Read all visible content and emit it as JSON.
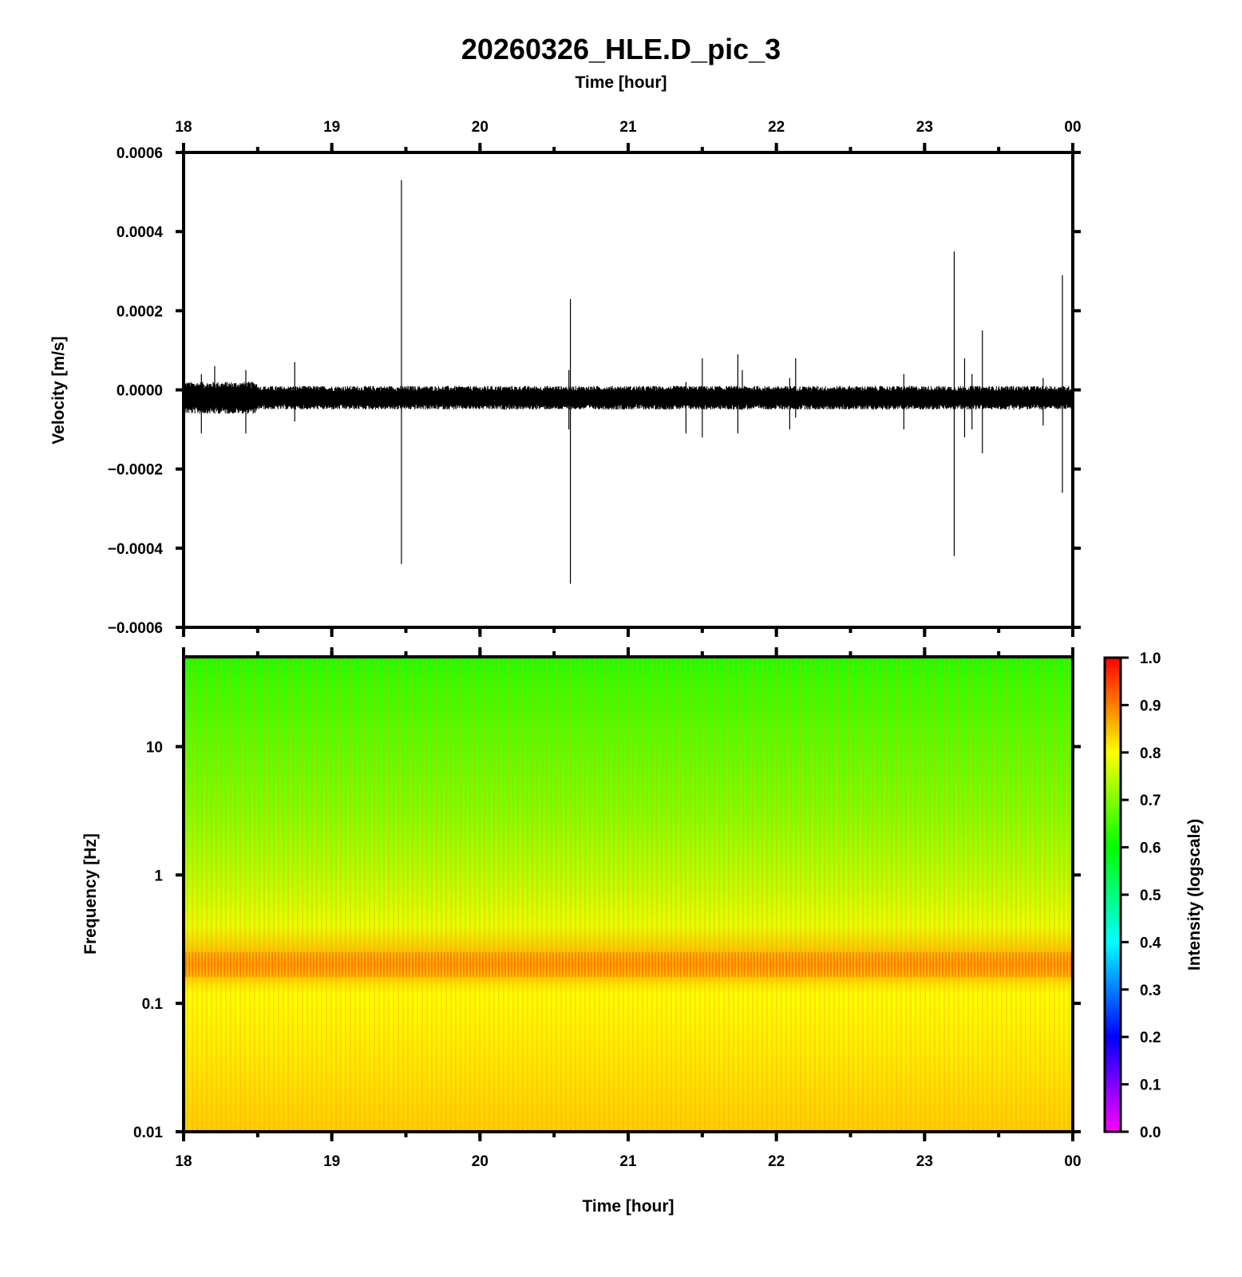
{
  "chart_data": [
    {
      "type": "line",
      "title": "20260326_HLE.D_pic_3",
      "xlabel_top": "Time [hour]",
      "ylabel": "Velocity [m/s]",
      "x_tick_labels": [
        "18",
        "19",
        "20",
        "21",
        "22",
        "23",
        "00"
      ],
      "xlim_hours": [
        18,
        24
      ],
      "ylim": [
        -0.0006,
        0.0006
      ],
      "y_ticks": [
        0.0006,
        0.0004,
        0.0002,
        0.0,
        -0.0002,
        -0.0004,
        -0.0006
      ],
      "y_tick_labels": [
        "0.0006",
        "0.0004",
        "0.0002",
        "0.0000",
        "−0.0002",
        "−0.0004",
        "−0.0006"
      ],
      "noise_band": {
        "center": -2e-05,
        "half_width": 3e-05
      },
      "spikes": [
        {
          "t": 18.12,
          "max": 4e-05,
          "min": -0.00011
        },
        {
          "t": 18.21,
          "max": 6e-05,
          "min": -6e-05
        },
        {
          "t": 18.42,
          "max": 5e-05,
          "min": -0.00011
        },
        {
          "t": 18.75,
          "max": 7e-05,
          "min": -8e-05
        },
        {
          "t": 19.47,
          "max": 0.00053,
          "min": -0.00044
        },
        {
          "t": 20.6,
          "max": 5e-05,
          "min": -0.0001
        },
        {
          "t": 20.61,
          "max": 0.00023,
          "min": -0.00049
        },
        {
          "t": 21.39,
          "max": 2e-05,
          "min": -0.00011
        },
        {
          "t": 21.5,
          "max": 8e-05,
          "min": -0.00012
        },
        {
          "t": 21.74,
          "max": 9e-05,
          "min": -0.00011
        },
        {
          "t": 21.77,
          "max": 5e-05,
          "min": -5e-05
        },
        {
          "t": 22.09,
          "max": 3e-05,
          "min": -0.0001
        },
        {
          "t": 22.13,
          "max": 8e-05,
          "min": -7e-05
        },
        {
          "t": 22.86,
          "max": 4e-05,
          "min": -0.0001
        },
        {
          "t": 23.2,
          "max": 0.00035,
          "min": -0.00042
        },
        {
          "t": 23.27,
          "max": 8e-05,
          "min": -0.00012
        },
        {
          "t": 23.32,
          "max": 4e-05,
          "min": -0.0001
        },
        {
          "t": 23.39,
          "max": 0.00015,
          "min": -0.00016
        },
        {
          "t": 23.8,
          "max": 3e-05,
          "min": -9e-05
        },
        {
          "t": 23.93,
          "max": 0.00029,
          "min": -0.00026
        }
      ]
    },
    {
      "type": "heatmap",
      "xlabel": "Time [hour]",
      "ylabel": "Frequency [Hz]",
      "x_tick_labels": [
        "18",
        "19",
        "20",
        "21",
        "22",
        "23",
        "00"
      ],
      "xlim_hours": [
        18,
        24
      ],
      "y_scale": "log",
      "ylim": [
        0.01,
        50
      ],
      "y_ticks": [
        0.01,
        0.1,
        1,
        10
      ],
      "y_tick_labels": [
        "0.01",
        "0.1",
        "1",
        "10"
      ],
      "intensity_profile": [
        {
          "freq": 50,
          "intensity": 0.62
        },
        {
          "freq": 30,
          "intensity": 0.64
        },
        {
          "freq": 10,
          "intensity": 0.67
        },
        {
          "freq": 3,
          "intensity": 0.7
        },
        {
          "freq": 1,
          "intensity": 0.74
        },
        {
          "freq": 0.4,
          "intensity": 0.78
        },
        {
          "freq": 0.2,
          "intensity": 0.87
        },
        {
          "freq": 0.12,
          "intensity": 0.8
        },
        {
          "freq": 0.03,
          "intensity": 0.82
        },
        {
          "freq": 0.01,
          "intensity": 0.84
        }
      ],
      "colorbar": {
        "label": "Intensity (logscale)",
        "range": [
          0.0,
          1.0
        ],
        "tick_labels": [
          "1.0",
          "0.9",
          "0.8",
          "0.7",
          "0.6",
          "0.5",
          "0.4",
          "0.3",
          "0.2",
          "0.1",
          "0.0"
        ],
        "colors": [
          "#ff00ff",
          "#0000ff",
          "#00ffff",
          "#00ff00",
          "#ffff00",
          "#ff0000"
        ]
      }
    }
  ]
}
